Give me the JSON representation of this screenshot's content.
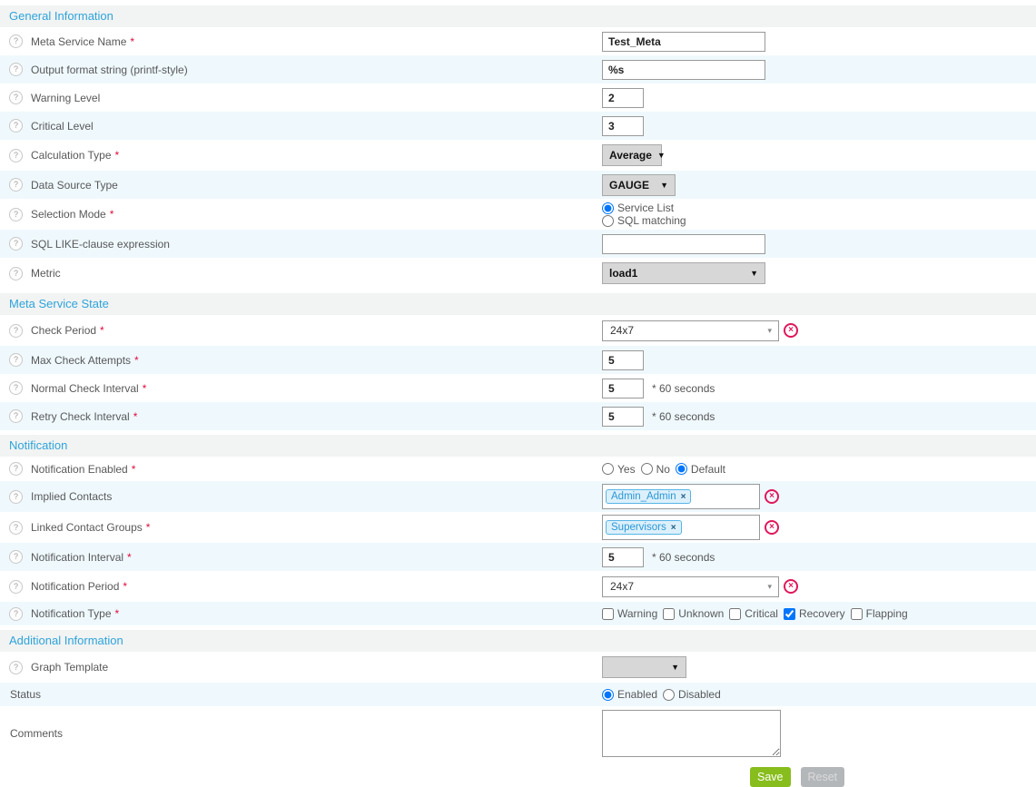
{
  "icons": {
    "help": "?",
    "caret": "▼",
    "caret_small": "▾",
    "remove": "×"
  },
  "colors": {
    "section_title": "#2ea4da",
    "required_star": "#e00b3b",
    "row_alt": "#eff9fd",
    "delete_red": "#e0175c",
    "chip_border": "#56b4e7",
    "chip_text": "#2b97d4",
    "save_green": "#87bd1c",
    "reset_gray": "#b4b7ba"
  },
  "sections": {
    "general": {
      "title": "General Information",
      "rows": {
        "meta_name": {
          "label": "Meta Service Name",
          "required": "*",
          "value": "Test_Meta"
        },
        "output_format": {
          "label": "Output format string (printf-style)",
          "value": "%s"
        },
        "warning_level": {
          "label": "Warning Level",
          "value": "2"
        },
        "critical_level": {
          "label": "Critical Level",
          "value": "3"
        },
        "calculation_type": {
          "label": "Calculation Type",
          "required": "*",
          "value": "Average"
        },
        "data_source_type": {
          "label": "Data Source Type",
          "value": "GAUGE"
        },
        "selection_mode": {
          "label": "Selection Mode",
          "required": "*",
          "options": {
            "service_list": "Service List",
            "sql_matching": "SQL matching"
          },
          "selected": "Service List"
        },
        "sql_like": {
          "label": "SQL LIKE-clause expression",
          "value": ""
        },
        "metric": {
          "label": "Metric",
          "value": "load1"
        }
      }
    },
    "meta_state": {
      "title": "Meta Service State",
      "rows": {
        "check_period": {
          "label": "Check Period",
          "required": "*",
          "value": "24x7"
        },
        "max_attempts": {
          "label": "Max Check Attempts",
          "required": "*",
          "value": "5"
        },
        "normal_interval": {
          "label": "Normal Check Interval",
          "required": "*",
          "value": "5",
          "suffix": "* 60 seconds"
        },
        "retry_interval": {
          "label": "Retry Check Interval",
          "required": "*",
          "value": "5",
          "suffix": "* 60 seconds"
        }
      }
    },
    "notification": {
      "title": "Notification",
      "rows": {
        "enabled": {
          "label": "Notification Enabled",
          "required": "*",
          "options": {
            "yes": "Yes",
            "no": "No",
            "default": "Default"
          },
          "selected": "Default"
        },
        "implied_contacts": {
          "label": "Implied Contacts",
          "tag": "Admin_Admin"
        },
        "contact_groups": {
          "label": "Linked Contact Groups",
          "required": "*",
          "tag": "Supervisors"
        },
        "interval": {
          "label": "Notification Interval",
          "required": "*",
          "value": "5",
          "suffix": "* 60 seconds"
        },
        "period": {
          "label": "Notification Period",
          "required": "*",
          "value": "24x7"
        },
        "type": {
          "label": "Notification Type",
          "required": "*",
          "options": {
            "warning": "Warning",
            "unknown": "Unknown",
            "critical": "Critical",
            "recovery": "Recovery",
            "flapping": "Flapping"
          },
          "checked": "Recovery"
        }
      }
    },
    "additional": {
      "title": "Additional Information",
      "rows": {
        "graph_template": {
          "label": "Graph Template",
          "value": ""
        },
        "status": {
          "label": "Status",
          "options": {
            "enabled": "Enabled",
            "disabled": "Disabled"
          },
          "selected": "Enabled"
        },
        "comments": {
          "label": "Comments",
          "value": ""
        }
      }
    }
  },
  "buttons": {
    "save": "Save",
    "reset": "Reset"
  }
}
